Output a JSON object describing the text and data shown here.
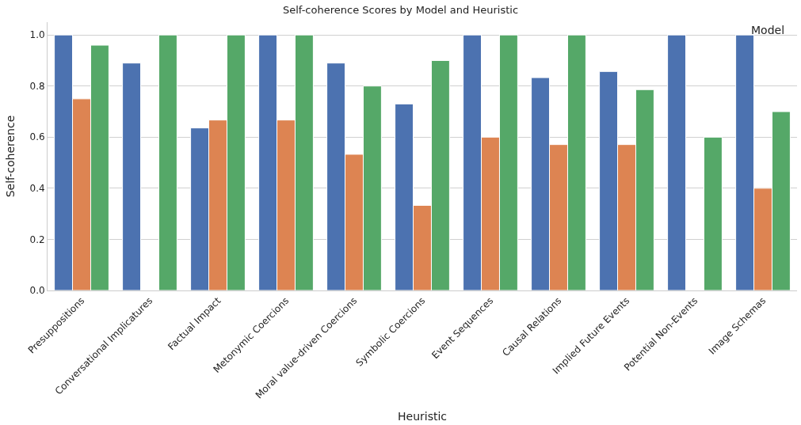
{
  "chart_data": {
    "type": "bar",
    "title": "Self-coherence Scores by Model and Heuristic",
    "xlabel": "Heuristic",
    "ylabel": "Self-coherence",
    "annotations": [
      "Model"
    ],
    "grid": "y",
    "categories": [
      "Presuppositions",
      "Conversational Implicatures",
      "Factual Impact",
      "Metonymic Coercions",
      "Moral value-driven Coercions",
      "Symbolic Coercions",
      "Event Sequences",
      "Causal Relations",
      "Implied Future Events",
      "Potential Non-Events",
      "Image Schemas"
    ],
    "ylim": [
      0,
      1.05
    ],
    "yticks": [
      {
        "value": 0,
        "label": "0.0"
      },
      {
        "value": 0.2,
        "label": "0.2"
      },
      {
        "value": 0.4,
        "label": "0.4"
      },
      {
        "value": 0.6,
        "label": "0.6"
      },
      {
        "value": 0.8,
        "label": "0.8"
      },
      {
        "value": 1,
        "label": "1.0"
      }
    ],
    "series": [
      {
        "color": "#4c72b0",
        "values": [
          1.0,
          0.89,
          0.636,
          1.0,
          0.89,
          0.73,
          1.0,
          0.833,
          0.857,
          1.0,
          1.0
        ]
      },
      {
        "color": "#dd8452",
        "values": [
          0.75,
          null,
          0.667,
          0.667,
          0.533,
          0.333,
          0.6,
          0.571,
          0.571,
          null,
          0.4
        ]
      },
      {
        "color": "#55a868",
        "values": [
          0.96,
          1.0,
          1.0,
          1.0,
          0.8,
          0.9,
          1.0,
          1.0,
          0.786,
          0.6,
          0.7
        ]
      }
    ]
  }
}
